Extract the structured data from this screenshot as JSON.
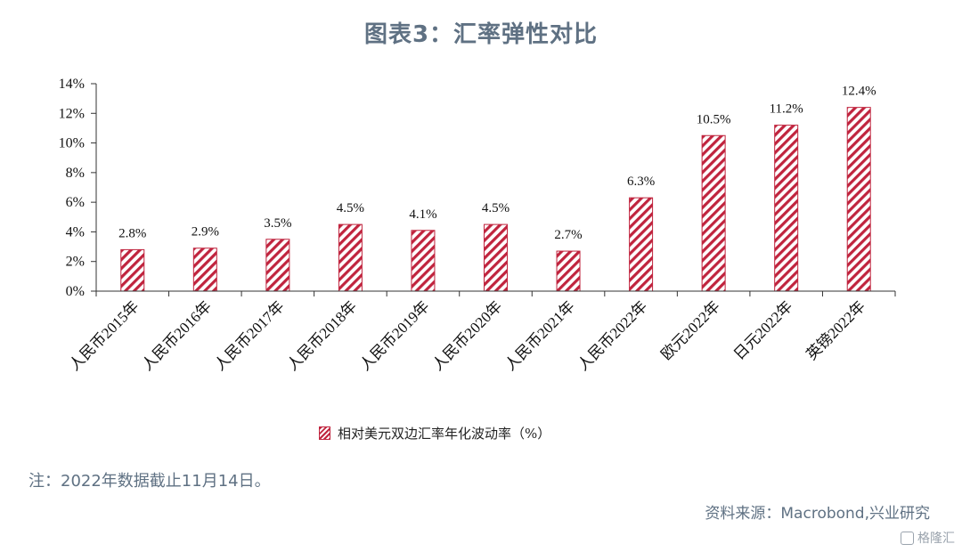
{
  "title": "图表3：汇率弹性对比",
  "chart_data": {
    "type": "bar",
    "categories": [
      "人民币2015年",
      "人民币2016年",
      "人民币2017年",
      "人民币2018年",
      "人民币2019年",
      "人民币2020年",
      "人民币2021年",
      "人民币2022年",
      "欧元2022年",
      "日元2022年",
      "英镑2022年"
    ],
    "series": [
      {
        "name": "相对美元双边汇率年化波动率（%）",
        "values": [
          2.8,
          2.9,
          3.5,
          4.5,
          4.1,
          4.5,
          2.7,
          6.3,
          10.5,
          11.2,
          12.4
        ],
        "labels": [
          "2.8%",
          "2.9%",
          "3.5%",
          "4.5%",
          "4.1%",
          "4.5%",
          "2.7%",
          "6.3%",
          "10.5%",
          "11.2%",
          "12.4%"
        ]
      }
    ],
    "ylim": [
      0,
      14
    ],
    "yticks": [
      "0%",
      "2%",
      "4%",
      "6%",
      "8%",
      "10%",
      "12%",
      "14%"
    ],
    "ytick_values": [
      0,
      2,
      4,
      6,
      8,
      10,
      12,
      14
    ],
    "grid": false,
    "legend_position": "bottom-center",
    "bar_color": "#c0243e",
    "bar_pattern": "diagonal-hatch"
  },
  "legend_label": "相对美元双边汇率年化波动率（%）",
  "note": "注：2022年数据截止11月14日。",
  "source": "资料来源：Macrobond,兴业研究",
  "watermark": "格隆汇"
}
